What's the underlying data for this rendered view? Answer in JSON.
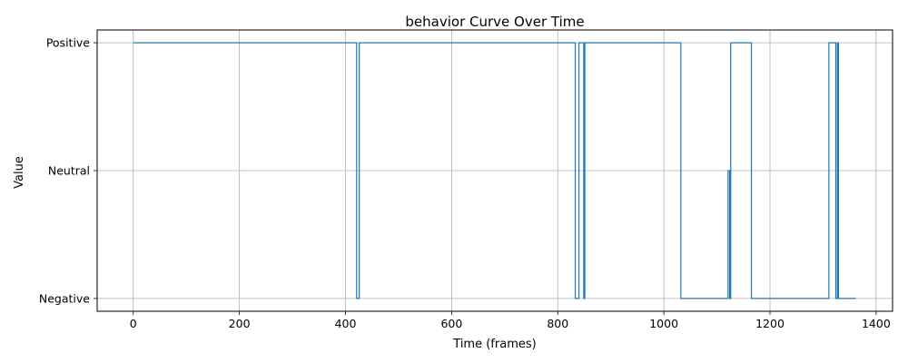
{
  "chart_data": {
    "type": "line",
    "title": "behavior Curve Over Time",
    "xlabel": "Time (frames)",
    "ylabel": "Value",
    "xlim": [
      -68,
      1431
    ],
    "ylim": [
      -0.1,
      2.1
    ],
    "x_ticks": [
      0,
      200,
      400,
      600,
      800,
      1000,
      1200,
      1400
    ],
    "x_tick_labels": [
      "0",
      "200",
      "400",
      "600",
      "800",
      "1000",
      "1200",
      "1400"
    ],
    "y_ticks": [
      0,
      1,
      2
    ],
    "y_tick_labels": [
      "Negative",
      "Neutral",
      "Positive"
    ],
    "grid": true,
    "series": [
      {
        "color": "#1f77b4",
        "step": true,
        "points": [
          [
            0,
            2
          ],
          [
            421,
            2
          ],
          [
            421,
            0
          ],
          [
            426,
            0
          ],
          [
            426,
            2
          ],
          [
            833,
            2
          ],
          [
            833,
            0
          ],
          [
            840,
            0
          ],
          [
            840,
            2
          ],
          [
            849,
            2
          ],
          [
            849,
            0
          ],
          [
            851,
            0
          ],
          [
            851,
            2
          ],
          [
            1032,
            2
          ],
          [
            1032,
            0
          ],
          [
            1121,
            0
          ],
          [
            1121,
            1
          ],
          [
            1124,
            1
          ],
          [
            1124,
            0
          ],
          [
            1126,
            0
          ],
          [
            1126,
            2
          ],
          [
            1165,
            2
          ],
          [
            1165,
            0
          ],
          [
            1311,
            0
          ],
          [
            1311,
            2
          ],
          [
            1324,
            2
          ],
          [
            1324,
            0
          ],
          [
            1327,
            0
          ],
          [
            1327,
            2
          ],
          [
            1329,
            2
          ],
          [
            1329,
            0
          ],
          [
            1362,
            0
          ]
        ]
      }
    ]
  }
}
